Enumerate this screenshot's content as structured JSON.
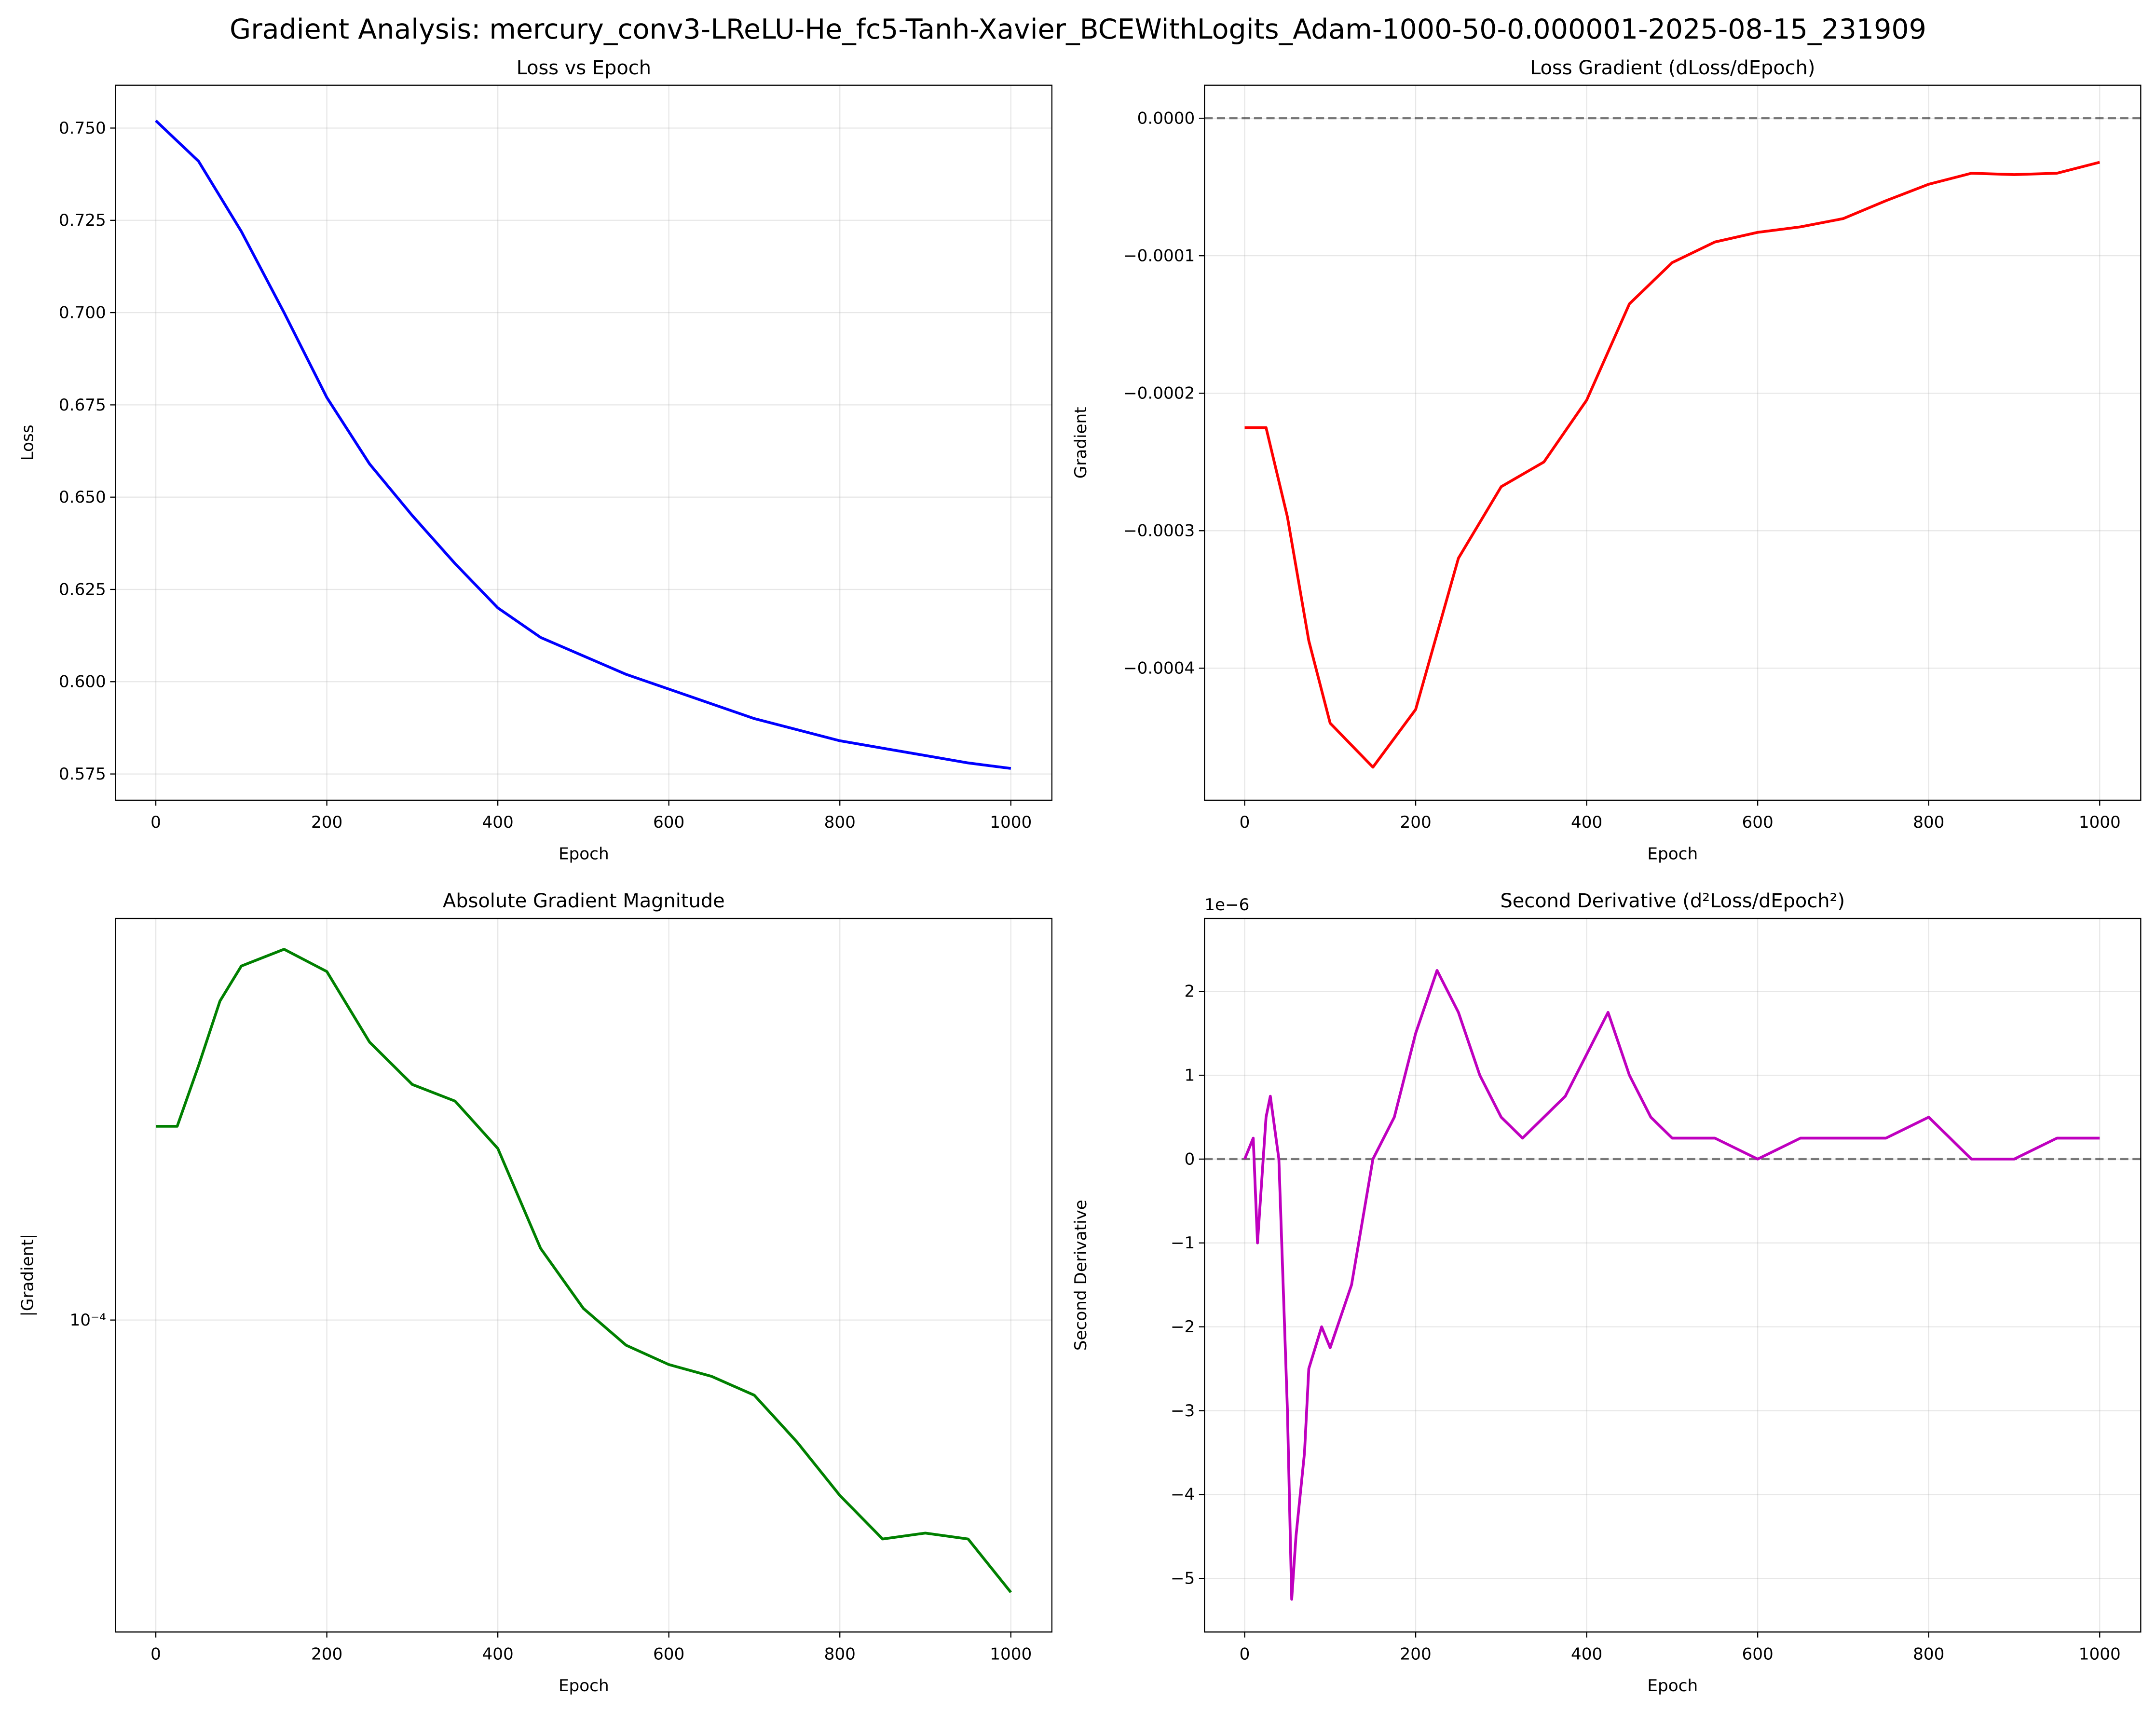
{
  "title": "Gradient Analysis: mercury_conv3-LReLU-He_fc5-Tanh-Xavier_BCEWithLogits_Adam-1000-50-0.000001-2025-08-15_231909",
  "chart_data": [
    {
      "type": "line",
      "title": "Loss vs Epoch",
      "xlabel": "Epoch",
      "ylabel": "Loss",
      "color": "#0000ff",
      "grid": true,
      "yscale": "linear",
      "x": [
        0,
        50,
        100,
        150,
        200,
        250,
        300,
        350,
        400,
        450,
        500,
        550,
        600,
        650,
        700,
        750,
        800,
        850,
        900,
        950,
        1000
      ],
      "values": [
        0.752,
        0.741,
        0.722,
        0.7,
        0.677,
        0.659,
        0.645,
        0.632,
        0.62,
        0.612,
        0.607,
        0.602,
        0.598,
        0.594,
        0.59,
        0.587,
        0.584,
        0.582,
        0.58,
        0.578,
        0.5765
      ],
      "xlim": [
        -47,
        1048
      ],
      "xticks": [
        0,
        200,
        400,
        600,
        800,
        1000
      ],
      "ylim": [
        0.5679,
        0.7616
      ],
      "yticks": [
        0.575,
        {
          "value": 0.6,
          "label": "0.600"
        },
        0.625,
        {
          "value": 0.65,
          "label": "0.650"
        },
        0.675,
        {
          "value": 0.7,
          "label": "0.700"
        },
        0.725,
        {
          "value": 0.75,
          "label": "0.750"
        }
      ]
    },
    {
      "type": "line",
      "title": "Loss Gradient (dLoss/dEpoch)",
      "xlabel": "Epoch",
      "ylabel": "Gradient",
      "color": "#ff0000",
      "grid": true,
      "yscale": "linear",
      "reference_line": 0,
      "x": [
        0,
        25,
        50,
        75,
        100,
        150,
        200,
        250,
        300,
        350,
        400,
        450,
        500,
        550,
        600,
        650,
        700,
        750,
        800,
        850,
        900,
        950,
        1000
      ],
      "values": [
        -0.000225,
        -0.000225,
        -0.00029,
        -0.00038,
        -0.00044,
        -0.000472,
        -0.00043,
        -0.00032,
        -0.000268,
        -0.00025,
        -0.000205,
        -0.000135,
        -0.000105,
        -9e-05,
        -8.3e-05,
        -7.9e-05,
        -7.3e-05,
        -6e-05,
        -4.8e-05,
        -4e-05,
        -4.1e-05,
        -4e-05,
        -3.2e-05
      ],
      "xlim": [
        -47,
        1048
      ],
      "xticks": [
        0,
        200,
        400,
        600,
        800,
        1000
      ],
      "ylim": [
        -0.000496,
        2.4e-05
      ],
      "yticks": [
        {
          "value": -0.0004,
          "label": "−0.0004"
        },
        {
          "value": -0.0003,
          "label": "−0.0003"
        },
        {
          "value": -0.0002,
          "label": "−0.0002"
        },
        {
          "value": -0.0001,
          "label": "−0.0001"
        },
        {
          "value": 0,
          "label": "0.0000"
        }
      ]
    },
    {
      "type": "line",
      "title": "Absolute Gradient Magnitude",
      "xlabel": "Epoch",
      "ylabel": "|Gradient|",
      "color": "#008000",
      "grid": true,
      "yscale": "log",
      "x": [
        0,
        25,
        50,
        75,
        100,
        150,
        200,
        250,
        300,
        350,
        400,
        450,
        500,
        550,
        600,
        650,
        700,
        750,
        800,
        850,
        900,
        950,
        1000
      ],
      "values": [
        0.000225,
        0.000225,
        0.00029,
        0.00038,
        0.00044,
        0.000472,
        0.00043,
        0.00032,
        0.000268,
        0.00025,
        0.000205,
        0.000135,
        0.000105,
        9e-05,
        8.3e-05,
        7.9e-05,
        7.3e-05,
        6e-05,
        4.8e-05,
        4e-05,
        4.1e-05,
        4e-05,
        3.2e-05
      ],
      "xlim": [
        -47,
        1048
      ],
      "xticks": [
        0,
        200,
        400,
        600,
        800,
        1000
      ],
      "ylim": [
        2.71e-05,
        0.000537
      ],
      "yticks": [
        {
          "value": 0.0001,
          "label": "10⁻⁴"
        }
      ]
    },
    {
      "type": "line",
      "title": "Second Derivative (d²Loss/dEpoch²)",
      "xlabel": "Epoch",
      "ylabel": "Second Derivative",
      "color": "#bf00bf",
      "grid": true,
      "yscale": "linear",
      "reference_line": 0,
      "offset_label": "1e−6",
      "x": [
        0,
        10,
        15,
        25,
        30,
        40,
        50,
        55,
        60,
        70,
        75,
        90,
        100,
        125,
        150,
        175,
        200,
        225,
        250,
        275,
        300,
        325,
        350,
        375,
        400,
        425,
        450,
        475,
        500,
        550,
        600,
        650,
        700,
        750,
        800,
        850,
        900,
        950,
        1000
      ],
      "values": [
        0,
        0.25,
        -1,
        0.5,
        0.75,
        0,
        -3,
        -5.25,
        -4.5,
        -3.5,
        -2.5,
        -2,
        -2.25,
        -1.5,
        0,
        0.5,
        1.5,
        2.25,
        1.75,
        1,
        0.5,
        0.25,
        0.5,
        0.75,
        1.25,
        1.75,
        1,
        0.5,
        0.25,
        0.25,
        0,
        0.25,
        0.25,
        0.25,
        0.5,
        0,
        0,
        0.25,
        0.25
      ],
      "xlim": [
        -47,
        1048
      ],
      "xticks": [
        0,
        200,
        400,
        600,
        800,
        1000
      ],
      "ylim": [
        -5.64,
        2.87
      ],
      "yticks": [
        {
          "value": -5,
          "label": "−5"
        },
        {
          "value": -4,
          "label": "−4"
        },
        {
          "value": -3,
          "label": "−3"
        },
        {
          "value": -2,
          "label": "−2"
        },
        {
          "value": -1,
          "label": "−1"
        },
        0,
        1,
        2
      ]
    }
  ]
}
